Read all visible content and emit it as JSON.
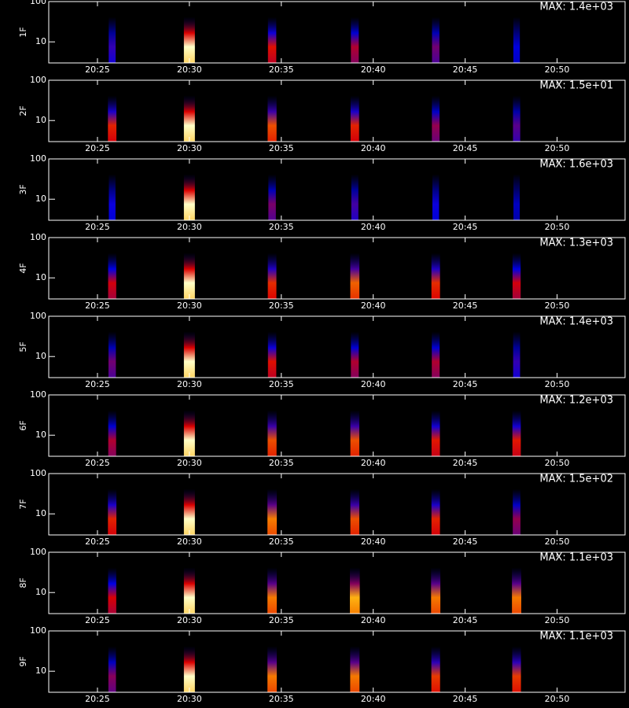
{
  "chart_data": [
    {
      "type": "spectrogram",
      "ylabel": "1F",
      "max_label": "MAX: 1.4e+03",
      "x": [
        25.8,
        30.0,
        34.5,
        39.0,
        43.4,
        47.8
      ],
      "values": [
        500,
        1400,
        800,
        700,
        600,
        400
      ],
      "xlim": [
        22.35,
        53.7
      ],
      "xticks": [
        {
          "value": 25,
          "label": "20:25"
        },
        {
          "value": 30,
          "label": "20:30"
        },
        {
          "value": 35,
          "label": "20:35"
        },
        {
          "value": 40,
          "label": "20:40"
        },
        {
          "value": 45,
          "label": "20:45"
        },
        {
          "value": 50,
          "label": "20:50"
        }
      ],
      "ylim": [
        3,
        100
      ],
      "yticks": [
        10,
        100
      ],
      "log_y": true
    },
    {
      "type": "spectrogram",
      "ylabel": "2F",
      "max_label": "MAX: 1.5e+01",
      "x": [
        25.8,
        30.0,
        34.5,
        39.0,
        43.4,
        47.8
      ],
      "values": [
        9,
        15,
        10,
        9,
        7,
        6
      ],
      "xlim": [
        22.35,
        53.7
      ],
      "xticks": [
        {
          "value": 25,
          "label": "20:25"
        },
        {
          "value": 30,
          "label": "20:30"
        },
        {
          "value": 35,
          "label": "20:35"
        },
        {
          "value": 40,
          "label": "20:40"
        },
        {
          "value": 45,
          "label": "20:45"
        },
        {
          "value": 50,
          "label": "20:50"
        }
      ],
      "ylim": [
        3,
        100
      ],
      "yticks": [
        10,
        100
      ],
      "log_y": true
    },
    {
      "type": "spectrogram",
      "ylabel": "3F",
      "max_label": "MAX: 1.6e+03",
      "x": [
        25.8,
        30.0,
        34.5,
        39.0,
        43.4,
        47.8
      ],
      "values": [
        500,
        1600,
        700,
        600,
        500,
        400
      ],
      "xlim": [
        22.35,
        53.7
      ],
      "xticks": [
        {
          "value": 25,
          "label": "20:25"
        },
        {
          "value": 30,
          "label": "20:30"
        },
        {
          "value": 35,
          "label": "20:35"
        },
        {
          "value": 40,
          "label": "20:40"
        },
        {
          "value": 45,
          "label": "20:45"
        },
        {
          "value": 50,
          "label": "20:50"
        }
      ],
      "ylim": [
        3,
        100
      ],
      "yticks": [
        10,
        100
      ],
      "log_y": true
    },
    {
      "type": "spectrogram",
      "ylabel": "4F",
      "max_label": "MAX: 1.3e+03",
      "x": [
        25.8,
        30.0,
        34.5,
        39.0,
        43.4,
        47.8
      ],
      "values": [
        700,
        1300,
        800,
        900,
        800,
        700
      ],
      "xlim": [
        22.35,
        53.7
      ],
      "xticks": [
        {
          "value": 25,
          "label": "20:25"
        },
        {
          "value": 30,
          "label": "20:30"
        },
        {
          "value": 35,
          "label": "20:35"
        },
        {
          "value": 40,
          "label": "20:40"
        },
        {
          "value": 45,
          "label": "20:45"
        },
        {
          "value": 50,
          "label": "20:50"
        }
      ],
      "ylim": [
        3,
        100
      ],
      "yticks": [
        10,
        100
      ],
      "log_y": true
    },
    {
      "type": "spectrogram",
      "ylabel": "5F",
      "max_label": "MAX: 1.4e+03",
      "x": [
        25.8,
        30.0,
        34.5,
        39.0,
        43.4,
        47.8
      ],
      "values": [
        600,
        1400,
        800,
        700,
        700,
        500
      ],
      "xlim": [
        22.35,
        53.7
      ],
      "xticks": [
        {
          "value": 25,
          "label": "20:25"
        },
        {
          "value": 30,
          "label": "20:30"
        },
        {
          "value": 35,
          "label": "20:35"
        },
        {
          "value": 40,
          "label": "20:40"
        },
        {
          "value": 45,
          "label": "20:45"
        },
        {
          "value": 50,
          "label": "20:50"
        }
      ],
      "ylim": [
        3,
        100
      ],
      "yticks": [
        10,
        100
      ],
      "log_y": true
    },
    {
      "type": "spectrogram",
      "ylabel": "6F",
      "max_label": "MAX: 1.2e+03",
      "x": [
        25.8,
        30.0,
        34.5,
        39.0,
        43.4,
        47.8
      ],
      "values": [
        600,
        1200,
        800,
        800,
        700,
        700
      ],
      "xlim": [
        22.35,
        53.7
      ],
      "xticks": [
        {
          "value": 25,
          "label": "20:25"
        },
        {
          "value": 30,
          "label": "20:30"
        },
        {
          "value": 35,
          "label": "20:35"
        },
        {
          "value": 40,
          "label": "20:40"
        },
        {
          "value": 45,
          "label": "20:45"
        },
        {
          "value": 50,
          "label": "20:50"
        }
      ],
      "ylim": [
        3,
        100
      ],
      "yticks": [
        10,
        100
      ],
      "log_y": true
    },
    {
      "type": "spectrogram",
      "ylabel": "7F",
      "max_label": "MAX: 1.5e+02",
      "x": [
        25.8,
        30.0,
        34.5,
        39.0,
        43.4,
        47.8
      ],
      "values": [
        90,
        150,
        110,
        100,
        90,
        70
      ],
      "xlim": [
        22.35,
        53.7
      ],
      "xticks": [
        {
          "value": 25,
          "label": "20:25"
        },
        {
          "value": 30,
          "label": "20:30"
        },
        {
          "value": 35,
          "label": "20:35"
        },
        {
          "value": 40,
          "label": "20:40"
        },
        {
          "value": 45,
          "label": "20:45"
        },
        {
          "value": 50,
          "label": "20:50"
        }
      ],
      "ylim": [
        3,
        100
      ],
      "yticks": [
        10,
        100
      ],
      "log_y": true
    },
    {
      "type": "spectrogram",
      "ylabel": "8F",
      "max_label": "MAX: 1.1e+03",
      "x": [
        25.8,
        30.0,
        34.5,
        39.0,
        43.4,
        47.8
      ],
      "values": [
        600,
        1100,
        800,
        900,
        800,
        800
      ],
      "xlim": [
        22.35,
        53.7
      ],
      "xticks": [
        {
          "value": 25,
          "label": "20:25"
        },
        {
          "value": 30,
          "label": "20:30"
        },
        {
          "value": 35,
          "label": "20:35"
        },
        {
          "value": 40,
          "label": "20:40"
        },
        {
          "value": 45,
          "label": "20:45"
        },
        {
          "value": 50,
          "label": "20:50"
        }
      ],
      "ylim": [
        3,
        100
      ],
      "yticks": [
        10,
        100
      ],
      "log_y": true
    },
    {
      "type": "spectrogram",
      "ylabel": "9F",
      "max_label": "MAX: 1.1e+03",
      "x": [
        25.8,
        30.0,
        34.5,
        39.0,
        43.4,
        47.8
      ],
      "values": [
        500,
        1100,
        800,
        800,
        700,
        700
      ],
      "xlim": [
        22.35,
        53.7
      ],
      "xticks": [
        {
          "value": 25,
          "label": "20:25"
        },
        {
          "value": 30,
          "label": "20:30"
        },
        {
          "value": 35,
          "label": "20:35"
        },
        {
          "value": 40,
          "label": "20:40"
        },
        {
          "value": 45,
          "label": "20:45"
        },
        {
          "value": 50,
          "label": "20:50"
        }
      ],
      "ylim": [
        3,
        100
      ],
      "yticks": [
        10,
        100
      ],
      "log_y": true
    }
  ]
}
